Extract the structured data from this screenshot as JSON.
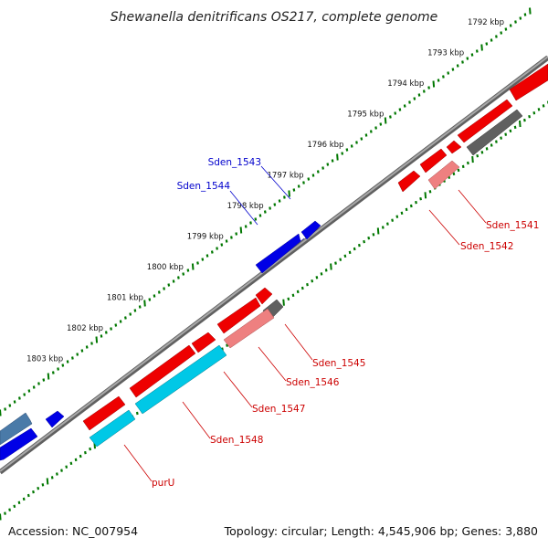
{
  "title": "Shewanella denitrificans OS217, complete genome",
  "accession": "Accession: NC_007954",
  "summary": "Topology: circular; Length: 4,545,906 bp; Genes: 3,880",
  "kbp_labels": [
    "1792 kbp",
    "1793 kbp",
    "1794 kbp",
    "1795 kbp",
    "1796 kbp",
    "1797 kbp",
    "1798 kbp",
    "1799 kbp",
    "1800 kbp",
    "1801 kbp",
    "1802 kbp",
    "1803 kbp"
  ],
  "genes_top": [
    "Sden_1543",
    "Sden_1544"
  ],
  "genes_bottom": [
    "Sden_1541",
    "Sden_1542",
    "Sden_1545",
    "Sden_1546",
    "Sden_1547",
    "Sden_1548",
    "purU"
  ],
  "colors": {
    "forward": "#0000e6",
    "reverse": "#ee0000",
    "pink": "#ee8080",
    "gray": "#606060",
    "cyan": "#00c8e6",
    "steel": "#4a7aa8",
    "backbone": "#808080",
    "tick": "#007700",
    "label_top": "#0000cc",
    "label_bottom": "#cc0000"
  }
}
